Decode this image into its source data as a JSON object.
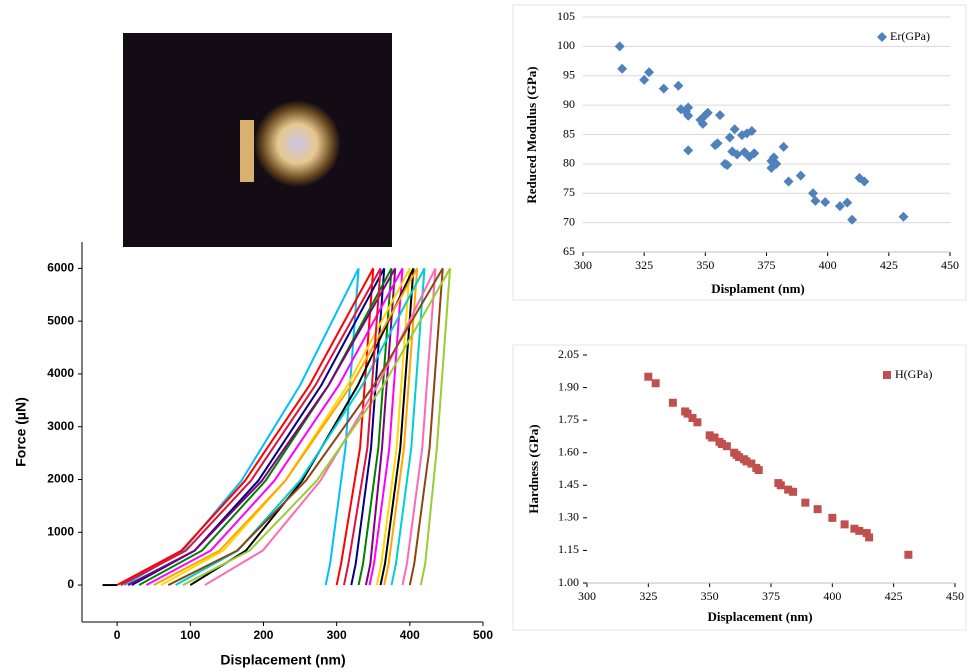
{
  "chart_data": [
    {
      "type": "line",
      "xlabel": "Displacement (nm)",
      "ylabel": "Force (µN)",
      "grid": false,
      "xlim": [
        -48,
        500
      ],
      "xticks": [
        0,
        100,
        200,
        300,
        400,
        500
      ],
      "ylim": [
        -700,
        6500
      ],
      "yticks": [
        0,
        1000,
        2000,
        3000,
        4000,
        5000,
        6000
      ],
      "series": [
        {
          "color": "#000000",
          "x": [
            -20,
            0
          ],
          "values": [
            0,
            0
          ]
        },
        {
          "color": "#00bfff",
          "x": [
            10,
            90,
            170,
            250,
            330,
            312,
            291,
            285
          ],
          "values": [
            0,
            653,
            1979,
            3786,
            6000,
            2600,
            400,
            0
          ]
        },
        {
          "color": "#ff0000",
          "x": [
            0,
            88,
            175,
            263,
            350,
            332,
            306,
            300
          ],
          "values": [
            0,
            653,
            1979,
            3786,
            6000,
            2600,
            400,
            0
          ]
        },
        {
          "color": "#000080",
          "x": [
            20,
            106,
            193,
            279,
            365,
            347,
            326,
            320
          ],
          "values": [
            0,
            653,
            1979,
            3786,
            6000,
            2600,
            400,
            0
          ]
        },
        {
          "color": "#008000",
          "x": [
            30,
            116,
            203,
            289,
            375,
            357,
            336,
            330
          ],
          "values": [
            0,
            653,
            1979,
            3786,
            6000,
            2600,
            400,
            0
          ]
        },
        {
          "color": "#800080",
          "x": [
            15,
            106,
            198,
            289,
            380,
            362,
            346,
            340
          ],
          "values": [
            0,
            653,
            1979,
            3786,
            6000,
            2600,
            400,
            0
          ]
        },
        {
          "color": "#ff00ff",
          "x": [
            40,
            128,
            215,
            303,
            390,
            372,
            351,
            345
          ],
          "values": [
            0,
            653,
            1979,
            3786,
            6000,
            2600,
            400,
            0
          ]
        },
        {
          "color": "#ffd700",
          "x": [
            60,
            145,
            230,
            315,
            400,
            382,
            361,
            355
          ],
          "values": [
            0,
            653,
            1979,
            3786,
            6000,
            2600,
            400,
            0
          ]
        },
        {
          "color": "#000000",
          "x": [
            100,
            176,
            253,
            329,
            405,
            387,
            366,
            360
          ],
          "values": [
            0,
            653,
            1979,
            3786,
            6000,
            2600,
            400,
            0
          ]
        },
        {
          "color": "#ffa500",
          "x": [
            50,
            140,
            230,
            320,
            410,
            392,
            371,
            365
          ],
          "values": [
            0,
            653,
            1979,
            3786,
            6000,
            2600,
            400,
            0
          ]
        },
        {
          "color": "#00ced1",
          "x": [
            80,
            165,
            250,
            335,
            420,
            402,
            381,
            375
          ],
          "values": [
            0,
            653,
            1979,
            3786,
            6000,
            2600,
            400,
            0
          ]
        },
        {
          "color": "#ff69b4",
          "x": [
            120,
            199,
            278,
            356,
            435,
            417,
            396,
            390
          ],
          "values": [
            0,
            653,
            1979,
            3786,
            6000,
            2600,
            400,
            0
          ]
        },
        {
          "color": "#8b4513",
          "x": [
            70,
            164,
            258,
            351,
            445,
            427,
            406,
            400
          ],
          "values": [
            0,
            653,
            1979,
            3786,
            6000,
            2600,
            400,
            0
          ]
        },
        {
          "color": "#9acd32",
          "x": [
            90,
            181,
            273,
            364,
            455,
            437,
            421,
            415
          ],
          "values": [
            0,
            653,
            1979,
            3786,
            6000,
            2600,
            400,
            0
          ]
        },
        {
          "color": "#dc143c",
          "x": [
            5,
            94,
            183,
            271,
            360,
            342,
            316,
            310
          ],
          "values": [
            0,
            653,
            1979,
            3786,
            6000,
            2600,
            400,
            0
          ]
        }
      ]
    },
    {
      "type": "scatter",
      "xlabel": "Displament (nm)",
      "ylabel": "Reduced Modulus (GPa)",
      "grid": true,
      "legend": "upper right",
      "xlim": [
        300,
        450
      ],
      "xticks": [
        300,
        325,
        350,
        375,
        400,
        425,
        450
      ],
      "ylim": [
        65,
        105
      ],
      "yticks": [
        65,
        70,
        75,
        80,
        85,
        90,
        95,
        100,
        105
      ],
      "series": [
        {
          "name": "Er(GPa)",
          "color": "#4f81bd",
          "marker": "diamond",
          "x": [
            315,
            316,
            325,
            327,
            333,
            339,
            340,
            342,
            343,
            343,
            343,
            348,
            349,
            350,
            351,
            354,
            355,
            356,
            358,
            359,
            360,
            361,
            362,
            363,
            365,
            366,
            367,
            368,
            369,
            370,
            377,
            377,
            378,
            379,
            382,
            384,
            389,
            394,
            395,
            399,
            405,
            408,
            410,
            413,
            415,
            431
          ],
          "values": [
            100,
            96.2,
            94.3,
            95.6,
            92.8,
            93.3,
            89.3,
            88.9,
            89.6,
            88.2,
            82.3,
            87.5,
            86.8,
            88.3,
            88.7,
            83.2,
            83.5,
            88.3,
            80,
            79.8,
            84.5,
            82.1,
            85.9,
            81.6,
            84.9,
            82,
            85.2,
            81.2,
            85.6,
            81.8,
            80.5,
            79.3,
            81.1,
            80,
            82.9,
            77,
            78,
            75,
            73.7,
            73.5,
            72.8,
            73.4,
            70.5,
            77.6,
            77,
            71
          ]
        }
      ]
    },
    {
      "type": "scatter",
      "xlabel": "Displacement (nm)",
      "ylabel": "Hardness (GPa)",
      "grid": false,
      "legend": "upper right",
      "xlim": [
        300,
        450
      ],
      "xticks": [
        300,
        325,
        350,
        375,
        400,
        425,
        450
      ],
      "ylim": [
        1,
        2.05
      ],
      "yticks": [
        {
          "value": 1,
          "label": "1.00"
        },
        1.15,
        {
          "value": 1.3,
          "label": "1.30"
        },
        1.45,
        {
          "value": 1.6,
          "label": "1.60"
        },
        1.75,
        {
          "value": 1.9,
          "label": "1.90"
        },
        2.05
      ],
      "series": [
        {
          "name": "H(GPa)",
          "color": "#c0504d",
          "marker": "square",
          "x": [
            325,
            328,
            335,
            340,
            341,
            343,
            345,
            350,
            351,
            352,
            354,
            355,
            357,
            360,
            361,
            362,
            364,
            365,
            367,
            369,
            370,
            378,
            379,
            382,
            384,
            389,
            394,
            400,
            405,
            409,
            411,
            414,
            415,
            431
          ],
          "values": [
            1.95,
            1.92,
            1.83,
            1.79,
            1.78,
            1.76,
            1.74,
            1.68,
            1.67,
            1.67,
            1.65,
            1.64,
            1.63,
            1.6,
            1.59,
            1.58,
            1.57,
            1.56,
            1.55,
            1.53,
            1.52,
            1.46,
            1.45,
            1.43,
            1.42,
            1.37,
            1.34,
            1.3,
            1.27,
            1.25,
            1.24,
            1.23,
            1.21,
            1.13
          ]
        }
      ]
    }
  ]
}
